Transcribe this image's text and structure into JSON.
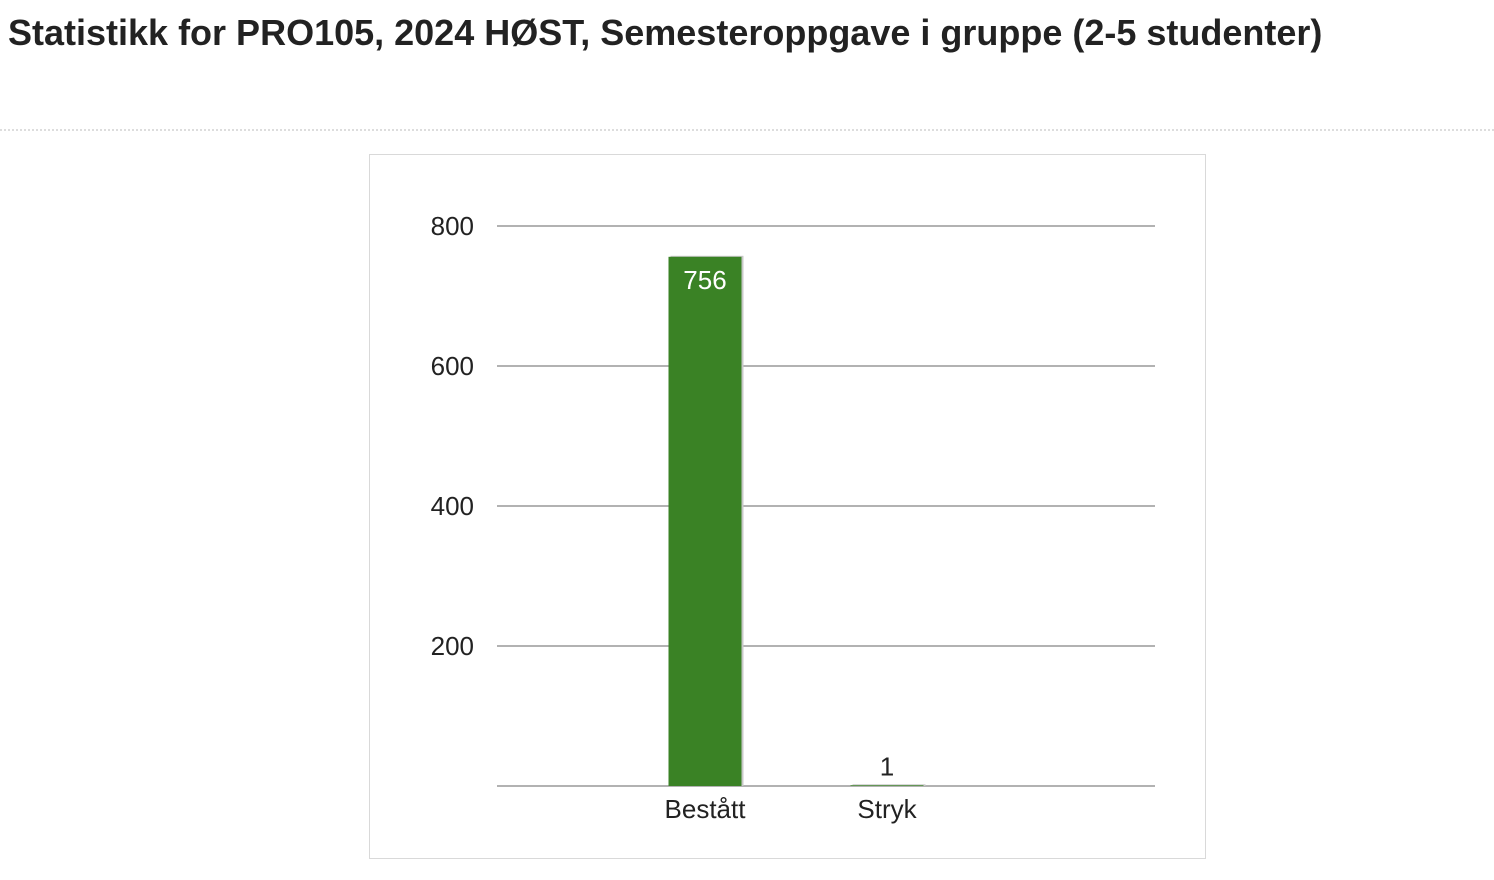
{
  "page": {
    "title": "Statistikk for PRO105, 2024 HØST, Semesteroppgave i gruppe (2-5 studenter)"
  },
  "chart_data": {
    "type": "bar",
    "title": "",
    "xlabel": "",
    "ylabel": "",
    "categories": [
      "Bestått",
      "Stryk"
    ],
    "values": [
      756,
      1
    ],
    "value_labels": [
      "756",
      "1"
    ],
    "ylim": [
      0,
      800
    ],
    "yticks": [
      200,
      400,
      600,
      800
    ],
    "ytick_labels": [
      "200",
      "400",
      "600",
      "800"
    ],
    "grid": true,
    "legend": "none",
    "colors": {
      "bar": "#3a8225",
      "bar_shadow": "#c8c8c8",
      "grid": "#999999",
      "tick_text": "#222222",
      "inside_label": "#ffffff"
    }
  }
}
